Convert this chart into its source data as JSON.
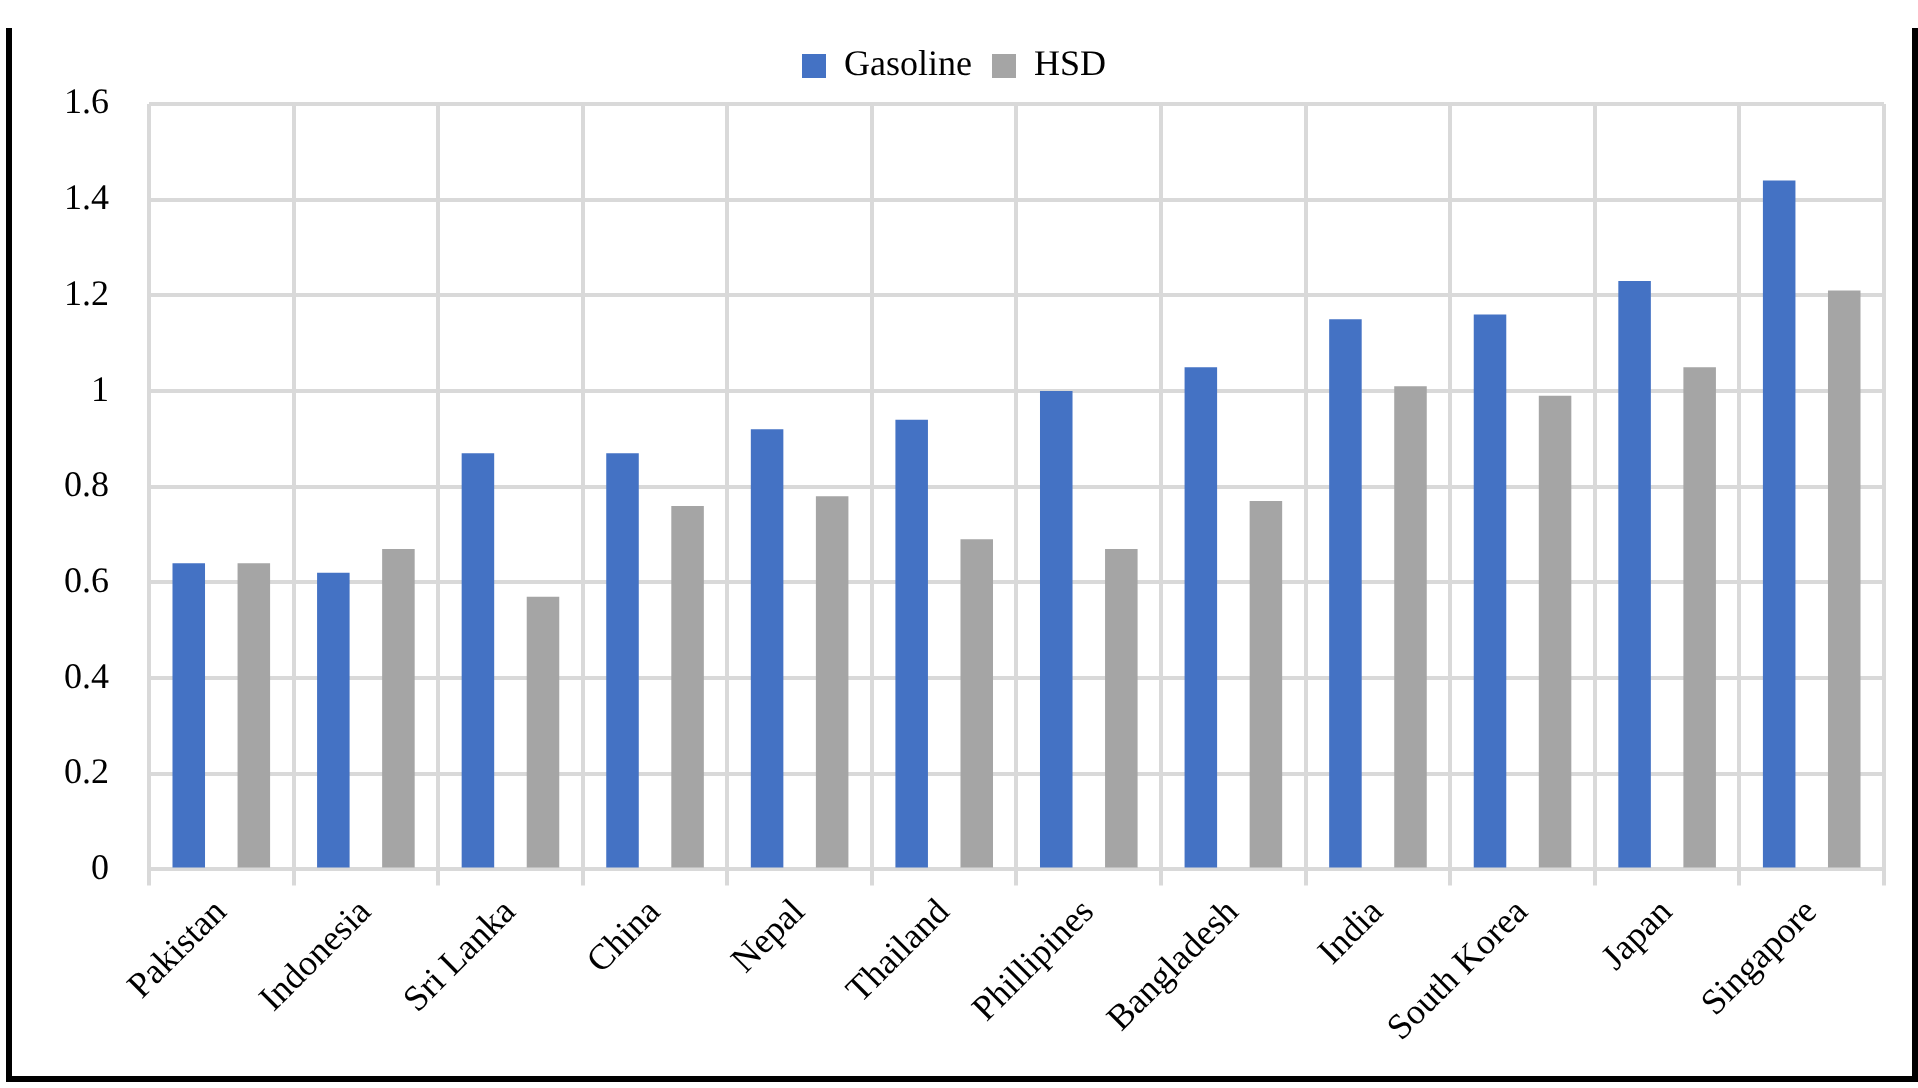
{
  "chart_data": {
    "type": "bar",
    "categories": [
      "Pakistan",
      "Indonesia",
      "Sri Lanka",
      "China",
      "Nepal",
      "Thailand",
      "Phillipines",
      "Bangladesh",
      "India",
      "South Korea",
      "Japan",
      "Singapore"
    ],
    "series": [
      {
        "name": "Gasoline",
        "color": "#4472c4",
        "values": [
          0.64,
          0.62,
          0.87,
          0.87,
          0.92,
          0.94,
          1.0,
          1.05,
          1.15,
          1.16,
          1.23,
          1.44
        ]
      },
      {
        "name": "HSD",
        "color": "#a5a5a5",
        "values": [
          0.64,
          0.67,
          0.57,
          0.76,
          0.78,
          0.69,
          0.67,
          0.77,
          1.01,
          0.99,
          1.05,
          1.21
        ]
      }
    ],
    "ylim": [
      0,
      1.6
    ],
    "yticks": [
      0,
      0.2,
      0.4,
      0.6,
      0.8,
      1,
      1.2,
      1.4,
      1.6
    ],
    "grid": true,
    "legend": "top"
  }
}
